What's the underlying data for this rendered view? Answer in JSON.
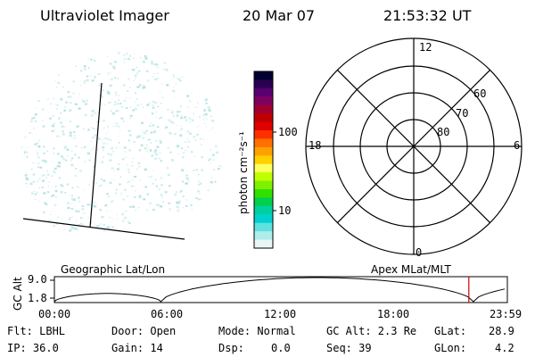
{
  "header": {
    "instrument": "Ultraviolet Imager",
    "date": "20 Mar 07",
    "time": "21:53:32 UT"
  },
  "colorbar": {
    "unit_label": "photon cm⁻²s⁻¹",
    "ticks": [
      "100",
      "10"
    ],
    "colors": [
      "#000033",
      "#2a0050",
      "#5a0070",
      "#800060",
      "#a00030",
      "#c00000",
      "#e00000",
      "#ff3000",
      "#ff7000",
      "#ffa000",
      "#ffd000",
      "#ffff60",
      "#c0ff00",
      "#80f000",
      "#30e000",
      "#00d050",
      "#00d0a0",
      "#00d0d0",
      "#60e0e0",
      "#b0ecec",
      "#e8f6f6"
    ]
  },
  "polar_plot": {
    "mlt_labels": [
      "12",
      "18",
      "6",
      "0"
    ],
    "lat_labels": [
      "60",
      "70",
      "80"
    ]
  },
  "timeline": {
    "y_axis_label": "GC Alt",
    "y_ticks": [
      "9.0",
      "1.8"
    ],
    "left_title": "Geographic Lat/Lon",
    "right_title": "Apex MLat/MLT",
    "x_ticks": [
      "00:00",
      "06:00",
      "12:00",
      "18:00",
      "23:59"
    ],
    "marker_color": "#cc0000"
  },
  "info_panel": {
    "flt": "Flt: LBHL",
    "ip": "IP: 36.0",
    "door": "Door: Open",
    "gain": "Gain: 14",
    "mode": "Mode: Normal",
    "dsp_label": "Dsp:",
    "dsp_value": "0.0",
    "gc_alt": "GC Alt: 2.3 Re",
    "seq": "Seq: 39",
    "glat_label": "GLat:",
    "glat_value": "28.9",
    "glon_label": "GLon:",
    "glon_value": "4.2"
  },
  "image_panel": {
    "speckle_color": "#a8dede"
  }
}
